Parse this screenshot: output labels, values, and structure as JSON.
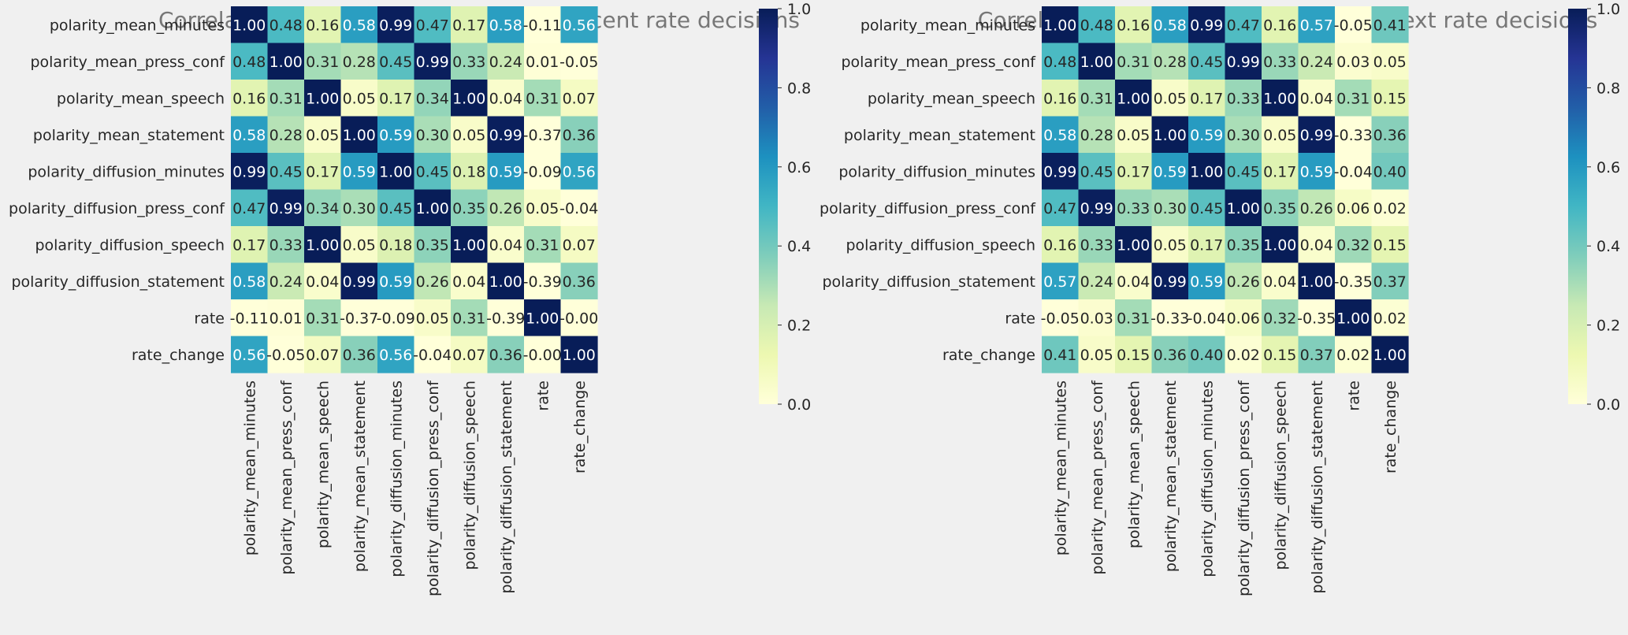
{
  "colorscale": {
    "name": "YlGnBu",
    "stops": [
      "#ffffd9",
      "#edf8b1",
      "#c7e9b4",
      "#7fcdbb",
      "#41b6c4",
      "#1d91c0",
      "#225ea8",
      "#253494",
      "#081d58"
    ],
    "text_dark": "#262626",
    "text_light": "#ffffff",
    "title_color": "#777777"
  },
  "chart_data": [
    {
      "type": "heatmap",
      "title": "Correlation between sentiments and recent rate decisions",
      "row_labels": [
        "polarity_mean_minutes",
        "polarity_mean_press_conf",
        "polarity_mean_speech",
        "polarity_mean_statement",
        "polarity_diffusion_minutes",
        "polarity_diffusion_press_conf",
        "polarity_diffusion_speech",
        "polarity_diffusion_statement",
        "rate",
        "rate_change"
      ],
      "col_labels": [
        "polarity_mean_minutes",
        "polarity_mean_press_conf",
        "polarity_mean_speech",
        "polarity_mean_statement",
        "polarity_diffusion_minutes",
        "polarity_diffusion_press_conf",
        "polarity_diffusion_speech",
        "polarity_diffusion_statement",
        "rate",
        "rate_change"
      ],
      "values": [
        [
          1.0,
          0.48,
          0.16,
          0.58,
          0.99,
          0.47,
          0.17,
          0.58,
          -0.11,
          0.56
        ],
        [
          0.48,
          1.0,
          0.31,
          0.28,
          0.45,
          0.99,
          0.33,
          0.24,
          0.01,
          -0.05
        ],
        [
          0.16,
          0.31,
          1.0,
          0.05,
          0.17,
          0.34,
          1.0,
          0.04,
          0.31,
          0.07
        ],
        [
          0.58,
          0.28,
          0.05,
          1.0,
          0.59,
          0.3,
          0.05,
          0.99,
          -0.37,
          0.36
        ],
        [
          0.99,
          0.45,
          0.17,
          0.59,
          1.0,
          0.45,
          0.18,
          0.59,
          -0.09,
          0.56
        ],
        [
          0.47,
          0.99,
          0.34,
          0.3,
          0.45,
          1.0,
          0.35,
          0.26,
          0.05,
          -0.04
        ],
        [
          0.17,
          0.33,
          1.0,
          0.05,
          0.18,
          0.35,
          1.0,
          0.04,
          0.31,
          0.07
        ],
        [
          0.58,
          0.24,
          0.04,
          0.99,
          0.59,
          0.26,
          0.04,
          1.0,
          -0.39,
          0.36
        ],
        [
          -0.11,
          0.01,
          0.31,
          -0.37,
          -0.09,
          0.05,
          0.31,
          -0.39,
          1.0,
          -0.0
        ],
        [
          0.56,
          -0.05,
          0.07,
          0.36,
          0.56,
          -0.04,
          0.07,
          0.36,
          -0.0,
          1.0
        ]
      ],
      "vmin": 0.0,
      "vmax": 1.0,
      "colorbar_ticks": [
        "0.0",
        "0.2",
        "0.4",
        "0.6",
        "0.8",
        "1.0"
      ]
    },
    {
      "type": "heatmap",
      "title": "Correlation between sentiments and next rate decisions",
      "row_labels": [
        "polarity_mean_minutes",
        "polarity_mean_press_conf",
        "polarity_mean_speech",
        "polarity_mean_statement",
        "polarity_diffusion_minutes",
        "polarity_diffusion_press_conf",
        "polarity_diffusion_speech",
        "polarity_diffusion_statement",
        "rate",
        "rate_change"
      ],
      "col_labels": [
        "polarity_mean_minutes",
        "polarity_mean_press_conf",
        "polarity_mean_speech",
        "polarity_mean_statement",
        "polarity_diffusion_minutes",
        "polarity_diffusion_press_conf",
        "polarity_diffusion_speech",
        "polarity_diffusion_statement",
        "rate",
        "rate_change"
      ],
      "values": [
        [
          1.0,
          0.48,
          0.16,
          0.58,
          0.99,
          0.47,
          0.16,
          0.57,
          -0.05,
          0.41
        ],
        [
          0.48,
          1.0,
          0.31,
          0.28,
          0.45,
          0.99,
          0.33,
          0.24,
          0.03,
          0.05
        ],
        [
          0.16,
          0.31,
          1.0,
          0.05,
          0.17,
          0.33,
          1.0,
          0.04,
          0.31,
          0.15
        ],
        [
          0.58,
          0.28,
          0.05,
          1.0,
          0.59,
          0.3,
          0.05,
          0.99,
          -0.33,
          0.36
        ],
        [
          0.99,
          0.45,
          0.17,
          0.59,
          1.0,
          0.45,
          0.17,
          0.59,
          -0.04,
          0.4
        ],
        [
          0.47,
          0.99,
          0.33,
          0.3,
          0.45,
          1.0,
          0.35,
          0.26,
          0.06,
          0.02
        ],
        [
          0.16,
          0.33,
          1.0,
          0.05,
          0.17,
          0.35,
          1.0,
          0.04,
          0.32,
          0.15
        ],
        [
          0.57,
          0.24,
          0.04,
          0.99,
          0.59,
          0.26,
          0.04,
          1.0,
          -0.35,
          0.37
        ],
        [
          -0.05,
          0.03,
          0.31,
          -0.33,
          -0.04,
          0.06,
          0.32,
          -0.35,
          1.0,
          0.02
        ],
        [
          0.41,
          0.05,
          0.15,
          0.36,
          0.4,
          0.02,
          0.15,
          0.37,
          0.02,
          1.0
        ]
      ],
      "vmin": 0.0,
      "vmax": 1.0,
      "colorbar_ticks": [
        "0.0",
        "0.2",
        "0.4",
        "0.6",
        "0.8",
        "1.0"
      ]
    }
  ]
}
